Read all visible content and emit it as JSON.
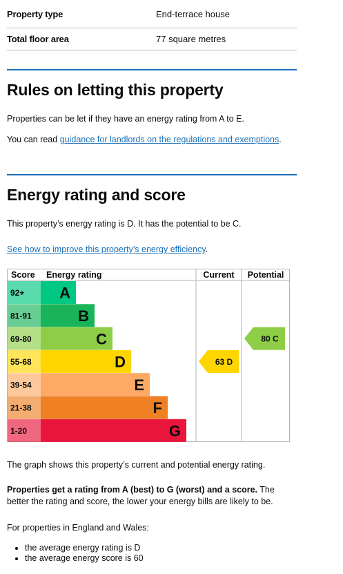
{
  "summary": [
    {
      "key": "Property type",
      "value": "End-terrace house"
    },
    {
      "key": "Total floor area",
      "value": "77 square metres"
    }
  ],
  "letting": {
    "heading": "Rules on letting this property",
    "para1": "Properties can be let if they have an energy rating from A to E.",
    "para2_prefix": "You can read ",
    "para2_link": "guidance for landlords on the regulations and exemptions",
    "para2_suffix": "."
  },
  "energy": {
    "heading": "Energy rating and score",
    "para1": "This property’s energy rating is D. It has the potential to be C.",
    "improve_link": "See how to improve this property’s energy efficiency",
    "improve_suffix": "."
  },
  "colors": {
    "link": "#1d70b8",
    "rule": "#1d70b8",
    "A": "#00c781",
    "B": "#19b459",
    "C": "#8dce46",
    "D": "#ffd500",
    "E": "#fcaa65",
    "F": "#ef8023",
    "G": "#e9153b"
  },
  "chart_data": {
    "type": "table",
    "headers": {
      "score": "Score",
      "rating": "Energy rating",
      "current": "Current",
      "potential": "Potential"
    },
    "bands": [
      {
        "score": "92+",
        "letter": "A"
      },
      {
        "score": "81-91",
        "letter": "B"
      },
      {
        "score": "69-80",
        "letter": "C"
      },
      {
        "score": "55-68",
        "letter": "D"
      },
      {
        "score": "39-54",
        "letter": "E"
      },
      {
        "score": "21-38",
        "letter": "F"
      },
      {
        "score": "1-20",
        "letter": "G"
      }
    ],
    "current": {
      "score": 63,
      "letter": "D",
      "label": "63  D"
    },
    "potential": {
      "score": 80,
      "letter": "C",
      "label": "80  C"
    }
  },
  "after": {
    "graph_note": "The graph shows this property’s current and potential energy rating.",
    "bold_text": "Properties get a rating from A (best) to G (worst) and a score.",
    "rest_text": " The better the rating and score, the lower your energy bills are likely to be.",
    "region_note": "For properties in England and Wales:",
    "bullets": [
      "the average energy rating is D",
      "the average energy score is 60"
    ]
  }
}
